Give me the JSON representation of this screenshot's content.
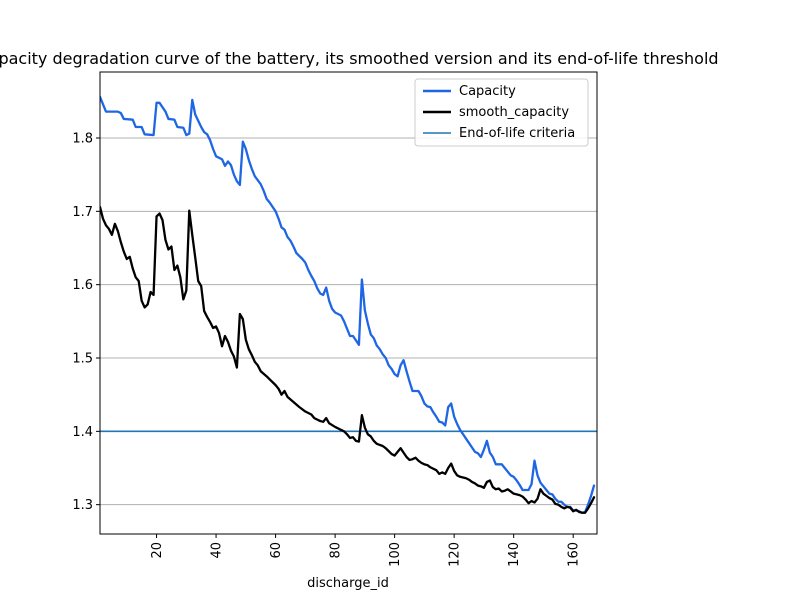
{
  "chart_data": {
    "type": "line",
    "title": "Capacity degradation curve of the battery, its smoothed version and its end-of-life threshold",
    "xlabel": "discharge_id",
    "ylabel": "",
    "xlim": [
      1,
      168
    ],
    "ylim": [
      1.26,
      1.89
    ],
    "x_ticks": [
      20,
      40,
      60,
      80,
      100,
      120,
      140,
      160
    ],
    "y_ticks": [
      1.3,
      1.4,
      1.5,
      1.6,
      1.7,
      1.8
    ],
    "x_tick_rotation": "vertical",
    "grid": "horizontal",
    "legend_position": "top-right",
    "threshold": {
      "name": "End-of-life criteria",
      "value": 1.4,
      "color": "#1f77b4"
    },
    "series": [
      {
        "name": "Capacity",
        "color": "#1f66e5",
        "points": [
          [
            1,
            1.856
          ],
          [
            3,
            1.836
          ],
          [
            5,
            1.836
          ],
          [
            7,
            1.836
          ],
          [
            8,
            1.834
          ],
          [
            9,
            1.826
          ],
          [
            12,
            1.825
          ],
          [
            13,
            1.815
          ],
          [
            15,
            1.815
          ],
          [
            16,
            1.805
          ],
          [
            19,
            1.804
          ],
          [
            20,
            1.848
          ],
          [
            21,
            1.848
          ],
          [
            23,
            1.836
          ],
          [
            24,
            1.826
          ],
          [
            26,
            1.825
          ],
          [
            27,
            1.815
          ],
          [
            29,
            1.814
          ],
          [
            30,
            1.804
          ],
          [
            31,
            1.806
          ],
          [
            32,
            1.852
          ],
          [
            33,
            1.832
          ],
          [
            35,
            1.815
          ],
          [
            36,
            1.808
          ],
          [
            37,
            1.805
          ],
          [
            38,
            1.797
          ],
          [
            39,
            1.785
          ],
          [
            40,
            1.775
          ],
          [
            42,
            1.771
          ],
          [
            43,
            1.762
          ],
          [
            44,
            1.768
          ],
          [
            45,
            1.763
          ],
          [
            46,
            1.75
          ],
          [
            47,
            1.741
          ],
          [
            48,
            1.736
          ],
          [
            49,
            1.795
          ],
          [
            50,
            1.785
          ],
          [
            51,
            1.77
          ],
          [
            52,
            1.758
          ],
          [
            53,
            1.748
          ],
          [
            55,
            1.737
          ],
          [
            56,
            1.728
          ],
          [
            57,
            1.717
          ],
          [
            58,
            1.712
          ],
          [
            60,
            1.7
          ],
          [
            61,
            1.69
          ],
          [
            62,
            1.678
          ],
          [
            63,
            1.675
          ],
          [
            64,
            1.665
          ],
          [
            65,
            1.66
          ],
          [
            66,
            1.652
          ],
          [
            67,
            1.643
          ],
          [
            69,
            1.635
          ],
          [
            70,
            1.63
          ],
          [
            71,
            1.62
          ],
          [
            72,
            1.612
          ],
          [
            73,
            1.605
          ],
          [
            74,
            1.595
          ],
          [
            75,
            1.588
          ],
          [
            76,
            1.586
          ],
          [
            77,
            1.596
          ],
          [
            78,
            1.578
          ],
          [
            79,
            1.567
          ],
          [
            80,
            1.562
          ],
          [
            82,
            1.558
          ],
          [
            83,
            1.55
          ],
          [
            84,
            1.54
          ],
          [
            85,
            1.53
          ],
          [
            86,
            1.53
          ],
          [
            87,
            1.524
          ],
          [
            88,
            1.518
          ],
          [
            89,
            1.607
          ],
          [
            90,
            1.565
          ],
          [
            91,
            1.547
          ],
          [
            92,
            1.532
          ],
          [
            93,
            1.527
          ],
          [
            94,
            1.517
          ],
          [
            95,
            1.512
          ],
          [
            96,
            1.505
          ],
          [
            97,
            1.5
          ],
          [
            98,
            1.49
          ],
          [
            99,
            1.485
          ],
          [
            100,
            1.478
          ],
          [
            101,
            1.475
          ],
          [
            102,
            1.49
          ],
          [
            103,
            1.497
          ],
          [
            104,
            1.482
          ],
          [
            105,
            1.468
          ],
          [
            106,
            1.455
          ],
          [
            108,
            1.455
          ],
          [
            109,
            1.448
          ],
          [
            110,
            1.438
          ],
          [
            111,
            1.434
          ],
          [
            112,
            1.433
          ],
          [
            113,
            1.426
          ],
          [
            114,
            1.42
          ],
          [
            115,
            1.413
          ],
          [
            116,
            1.412
          ],
          [
            117,
            1.408
          ],
          [
            118,
            1.433
          ],
          [
            119,
            1.438
          ],
          [
            120,
            1.42
          ],
          [
            121,
            1.41
          ],
          [
            122,
            1.402
          ],
          [
            123,
            1.396
          ],
          [
            124,
            1.39
          ],
          [
            125,
            1.384
          ],
          [
            126,
            1.378
          ],
          [
            127,
            1.372
          ],
          [
            128,
            1.37
          ],
          [
            129,
            1.365
          ],
          [
            130,
            1.375
          ],
          [
            131,
            1.387
          ],
          [
            132,
            1.371
          ],
          [
            133,
            1.365
          ],
          [
            134,
            1.355
          ],
          [
            136,
            1.355
          ],
          [
            137,
            1.35
          ],
          [
            138,
            1.345
          ],
          [
            139,
            1.34
          ],
          [
            140,
            1.338
          ],
          [
            141,
            1.333
          ],
          [
            142,
            1.327
          ],
          [
            143,
            1.32
          ],
          [
            145,
            1.32
          ],
          [
            146,
            1.328
          ],
          [
            147,
            1.36
          ],
          [
            148,
            1.34
          ],
          [
            149,
            1.33
          ],
          [
            150,
            1.325
          ],
          [
            151,
            1.32
          ],
          [
            152,
            1.315
          ],
          [
            153,
            1.314
          ],
          [
            154,
            1.308
          ],
          [
            155,
            1.304
          ],
          [
            156,
            1.304
          ],
          [
            157,
            1.3
          ],
          [
            158,
            1.297
          ],
          [
            159,
            1.297
          ],
          [
            160,
            1.292
          ],
          [
            161,
            1.292
          ],
          [
            162,
            1.291
          ],
          [
            163,
            1.289
          ],
          [
            164,
            1.29
          ],
          [
            165,
            1.3
          ],
          [
            166,
            1.312
          ],
          [
            167,
            1.326
          ]
        ]
      },
      {
        "name": "smooth_capacity",
        "color": "#000000",
        "points": [
          [
            1,
            1.706
          ],
          [
            2,
            1.69
          ],
          [
            3,
            1.681
          ],
          [
            4,
            1.676
          ],
          [
            5,
            1.668
          ],
          [
            6,
            1.683
          ],
          [
            7,
            1.673
          ],
          [
            8,
            1.658
          ],
          [
            9,
            1.645
          ],
          [
            10,
            1.635
          ],
          [
            11,
            1.638
          ],
          [
            12,
            1.622
          ],
          [
            13,
            1.61
          ],
          [
            14,
            1.605
          ],
          [
            15,
            1.578
          ],
          [
            16,
            1.569
          ],
          [
            17,
            1.573
          ],
          [
            18,
            1.59
          ],
          [
            19,
            1.586
          ],
          [
            20,
            1.693
          ],
          [
            21,
            1.697
          ],
          [
            22,
            1.688
          ],
          [
            23,
            1.661
          ],
          [
            24,
            1.648
          ],
          [
            25,
            1.652
          ],
          [
            26,
            1.62
          ],
          [
            27,
            1.626
          ],
          [
            28,
            1.61
          ],
          [
            29,
            1.58
          ],
          [
            30,
            1.592
          ],
          [
            31,
            1.701
          ],
          [
            32,
            1.668
          ],
          [
            33,
            1.637
          ],
          [
            34,
            1.605
          ],
          [
            35,
            1.598
          ],
          [
            36,
            1.564
          ],
          [
            37,
            1.556
          ],
          [
            38,
            1.549
          ],
          [
            39,
            1.541
          ],
          [
            40,
            1.543
          ],
          [
            41,
            1.534
          ],
          [
            42,
            1.516
          ],
          [
            43,
            1.53
          ],
          [
            44,
            1.522
          ],
          [
            45,
            1.51
          ],
          [
            46,
            1.502
          ],
          [
            47,
            1.487
          ],
          [
            48,
            1.56
          ],
          [
            49,
            1.553
          ],
          [
            50,
            1.525
          ],
          [
            51,
            1.512
          ],
          [
            52,
            1.504
          ],
          [
            53,
            1.495
          ],
          [
            54,
            1.49
          ],
          [
            55,
            1.482
          ],
          [
            57,
            1.475
          ],
          [
            58,
            1.471
          ],
          [
            60,
            1.463
          ],
          [
            61,
            1.458
          ],
          [
            62,
            1.45
          ],
          [
            63,
            1.455
          ],
          [
            64,
            1.447
          ],
          [
            66,
            1.44
          ],
          [
            68,
            1.433
          ],
          [
            70,
            1.427
          ],
          [
            72,
            1.423
          ],
          [
            73,
            1.418
          ],
          [
            75,
            1.414
          ],
          [
            76,
            1.413
          ],
          [
            77,
            1.418
          ],
          [
            78,
            1.411
          ],
          [
            80,
            1.406
          ],
          [
            82,
            1.402
          ],
          [
            83,
            1.4
          ],
          [
            84,
            1.396
          ],
          [
            85,
            1.391
          ],
          [
            86,
            1.392
          ],
          [
            87,
            1.387
          ],
          [
            88,
            1.386
          ],
          [
            89,
            1.422
          ],
          [
            90,
            1.405
          ],
          [
            91,
            1.396
          ],
          [
            92,
            1.393
          ],
          [
            93,
            1.387
          ],
          [
            94,
            1.383
          ],
          [
            96,
            1.38
          ],
          [
            97,
            1.377
          ],
          [
            98,
            1.373
          ],
          [
            99,
            1.369
          ],
          [
            100,
            1.367
          ],
          [
            101,
            1.372
          ],
          [
            102,
            1.377
          ],
          [
            103,
            1.371
          ],
          [
            104,
            1.365
          ],
          [
            105,
            1.361
          ],
          [
            106,
            1.362
          ],
          [
            107,
            1.364
          ],
          [
            108,
            1.36
          ],
          [
            109,
            1.357
          ],
          [
            110,
            1.355
          ],
          [
            111,
            1.354
          ],
          [
            112,
            1.351
          ],
          [
            113,
            1.349
          ],
          [
            114,
            1.347
          ],
          [
            115,
            1.342
          ],
          [
            116,
            1.344
          ],
          [
            117,
            1.342
          ],
          [
            118,
            1.35
          ],
          [
            119,
            1.356
          ],
          [
            120,
            1.346
          ],
          [
            121,
            1.34
          ],
          [
            122,
            1.338
          ],
          [
            124,
            1.336
          ],
          [
            125,
            1.334
          ],
          [
            126,
            1.331
          ],
          [
            127,
            1.329
          ],
          [
            128,
            1.326
          ],
          [
            129,
            1.325
          ],
          [
            130,
            1.323
          ],
          [
            131,
            1.331
          ],
          [
            132,
            1.333
          ],
          [
            133,
            1.324
          ],
          [
            134,
            1.321
          ],
          [
            135,
            1.322
          ],
          [
            136,
            1.318
          ],
          [
            137,
            1.319
          ],
          [
            138,
            1.321
          ],
          [
            139,
            1.318
          ],
          [
            140,
            1.315
          ],
          [
            142,
            1.313
          ],
          [
            143,
            1.311
          ],
          [
            144,
            1.307
          ],
          [
            145,
            1.302
          ],
          [
            146,
            1.305
          ],
          [
            147,
            1.303
          ],
          [
            148,
            1.308
          ],
          [
            149,
            1.321
          ],
          [
            150,
            1.315
          ],
          [
            151,
            1.312
          ],
          [
            152,
            1.309
          ],
          [
            153,
            1.307
          ],
          [
            154,
            1.301
          ],
          [
            155,
            1.3
          ],
          [
            156,
            1.297
          ],
          [
            157,
            1.295
          ],
          [
            158,
            1.297
          ],
          [
            159,
            1.296
          ],
          [
            160,
            1.291
          ],
          [
            161,
            1.293
          ],
          [
            162,
            1.29
          ],
          [
            163,
            1.289
          ],
          [
            164,
            1.289
          ],
          [
            165,
            1.295
          ],
          [
            166,
            1.302
          ],
          [
            167,
            1.31
          ]
        ]
      }
    ]
  }
}
